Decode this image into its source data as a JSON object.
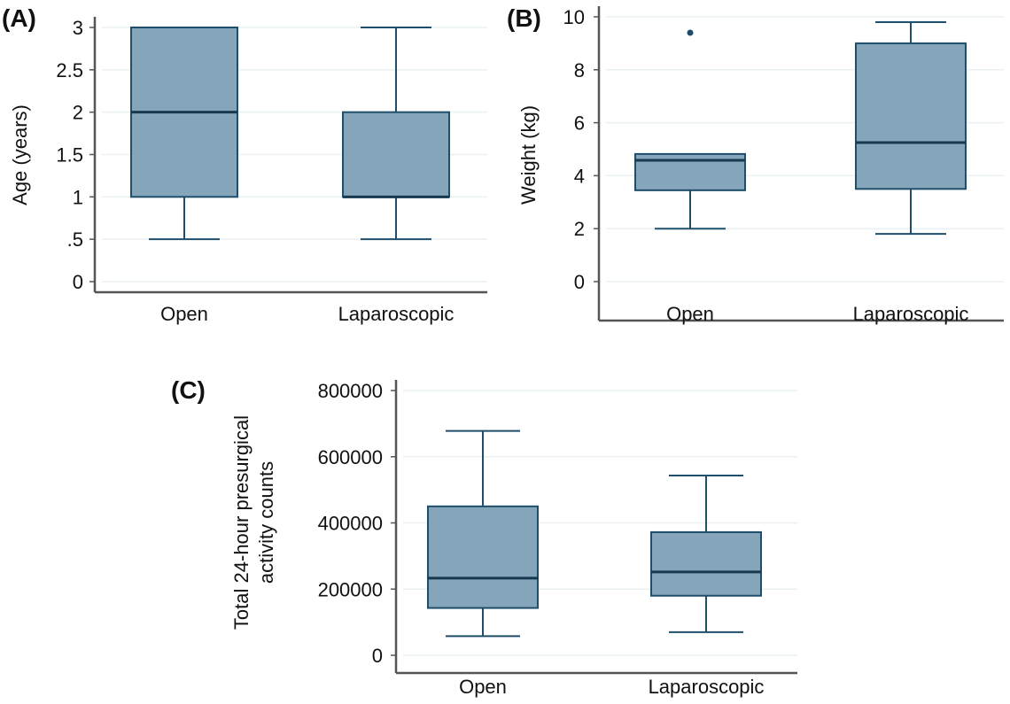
{
  "colors": {
    "box_fill": "#85a6ba",
    "box_stroke": "#1f4e6b",
    "grid": "#eaf0f3",
    "axis": "#555555"
  },
  "chart_data": [
    {
      "type": "box",
      "panel_label": "(A)",
      "ylabel": "Age (years)",
      "categories": [
        "Open",
        "Laparoscopic"
      ],
      "yticks": [
        0,
        0.5,
        1,
        1.5,
        2,
        2.5,
        3
      ],
      "ytick_labels": [
        "0",
        ".5",
        "1",
        "1.5",
        "2",
        "2.5",
        "3"
      ],
      "ylim": [
        0,
        3
      ],
      "grid": true,
      "boxes": [
        {
          "min": 0.5,
          "q1": 1,
          "median": 2,
          "q3": 3,
          "max": 3,
          "outliers": []
        },
        {
          "min": 0.5,
          "q1": 1,
          "median": 1,
          "q3": 2,
          "max": 3,
          "outliers": []
        }
      ]
    },
    {
      "type": "box",
      "panel_label": "(B)",
      "ylabel": "Weight (kg)",
      "categories": [
        "Open",
        "Laparoscopic"
      ],
      "yticks": [
        0,
        2,
        4,
        6,
        8,
        10
      ],
      "ytick_labels": [
        "0",
        "2",
        "4",
        "6",
        "8",
        "10"
      ],
      "ylim": [
        0,
        10
      ],
      "grid": true,
      "boxes": [
        {
          "min": 2,
          "q1": 3.45,
          "median": 4.58,
          "q3": 4.82,
          "max": 4.82,
          "outliers": [
            9.4
          ]
        },
        {
          "min": 1.8,
          "q1": 3.5,
          "median": 5.25,
          "q3": 9,
          "max": 9.8,
          "outliers": []
        }
      ]
    },
    {
      "type": "box",
      "panel_label": "(C)",
      "ylabel": [
        "Total 24-hour presurgical",
        "activity counts"
      ],
      "categories": [
        "Open",
        "Laparoscopic"
      ],
      "yticks": [
        0,
        200000,
        400000,
        600000,
        800000
      ],
      "ytick_labels": [
        "0",
        "200000",
        "400000",
        "600000",
        "800000"
      ],
      "ylim": [
        0,
        800000
      ],
      "grid": true,
      "boxes": [
        {
          "min": 58000,
          "q1": 143000,
          "median": 233000,
          "q3": 450000,
          "max": 678000,
          "outliers": []
        },
        {
          "min": 70000,
          "q1": 180000,
          "median": 252000,
          "q3": 372000,
          "max": 543000,
          "outliers": []
        }
      ]
    }
  ]
}
